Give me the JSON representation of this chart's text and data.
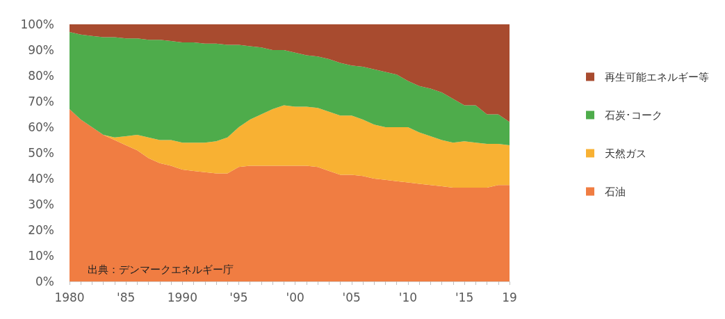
{
  "chart_data": {
    "type": "area",
    "stacked": true,
    "x": [
      1980,
      1981,
      1982,
      1983,
      1984,
      1985,
      1986,
      1987,
      1988,
      1989,
      1990,
      1991,
      1992,
      1993,
      1994,
      1995,
      1996,
      1997,
      1998,
      1999,
      2000,
      2001,
      2002,
      2003,
      2004,
      2005,
      2006,
      2007,
      2008,
      2009,
      2010,
      2011,
      2012,
      2013,
      2014,
      2015,
      2016,
      2017,
      2018,
      2019
    ],
    "series": [
      {
        "name": "石油",
        "color": "#f07d42",
        "values": [
          67,
          63,
          60,
          57,
          55,
          53,
          51,
          48,
          46,
          45,
          43.5,
          43,
          42.5,
          42,
          42,
          44.5,
          45,
          45,
          45,
          45,
          45,
          45,
          44.5,
          43,
          41.5,
          41.5,
          41,
          40,
          39.5,
          39,
          38.5,
          38,
          37.5,
          37,
          36.5,
          36.5,
          36.5,
          36.5,
          37.5,
          37.5
        ]
      },
      {
        "name": "天然ガス",
        "color": "#f8b133",
        "values": [
          0,
          0,
          0,
          0,
          1,
          3.5,
          6,
          8,
          9,
          10,
          10.5,
          11,
          11.5,
          12.5,
          14,
          15.5,
          18,
          20,
          22,
          23.5,
          23,
          23,
          23,
          23,
          23,
          23,
          22,
          21,
          20.5,
          21,
          21.5,
          20,
          19,
          18,
          17.5,
          18,
          17.5,
          17,
          16,
          15.5
        ]
      },
      {
        "name": "石炭･コーク",
        "color": "#4eac4b",
        "values": [
          30,
          33,
          35.5,
          38,
          39,
          38,
          37.5,
          38,
          39,
          38.5,
          39,
          39,
          38.5,
          38,
          36,
          32,
          28.5,
          26,
          23,
          21.5,
          21,
          20,
          20,
          20.5,
          20.5,
          19.5,
          20.5,
          21.5,
          21.5,
          20.5,
          18,
          18,
          18.5,
          18.5,
          17,
          14,
          14.5,
          11.5,
          11.5,
          9
        ]
      },
      {
        "name": "再生可能エネルギー等",
        "color": "#a84b2f",
        "values": [
          3,
          4,
          4.5,
          5,
          5,
          5.5,
          5.5,
          6,
          6,
          6.5,
          7,
          7,
          7.5,
          7.5,
          8,
          8,
          8.5,
          9,
          10,
          10,
          11,
          12,
          12.5,
          13.5,
          15,
          16,
          16.5,
          17.5,
          18.5,
          19.5,
          22,
          24,
          25,
          26.5,
          29,
          31.5,
          31.5,
          35,
          35,
          38
        ]
      }
    ],
    "xlim": [
      1980,
      2019
    ],
    "xticks": [
      1980,
      {
        "value": 1985,
        "label": "'85"
      },
      1990,
      {
        "value": 1995,
        "label": "'95"
      },
      {
        "value": 2000,
        "label": "'00"
      },
      {
        "value": 2005,
        "label": "'05"
      },
      {
        "value": 2010,
        "label": "'10"
      },
      {
        "value": 2015,
        "label": "'15"
      },
      {
        "value": 2019,
        "label": "19"
      }
    ],
    "ylim": [
      0,
      100
    ],
    "yticks": [
      {
        "value": 0,
        "label": "0%"
      },
      {
        "value": 10,
        "label": "10%"
      },
      {
        "value": 20,
        "label": "20%"
      },
      {
        "value": 30,
        "label": "30%"
      },
      {
        "value": 40,
        "label": "40%"
      },
      {
        "value": 50,
        "label": "50%"
      },
      {
        "value": 60,
        "label": "60%"
      },
      {
        "value": 70,
        "label": "70%"
      },
      {
        "value": 80,
        "label": "80%"
      },
      {
        "value": 90,
        "label": "90%"
      },
      {
        "value": 100,
        "label": "100%"
      }
    ],
    "grid": false,
    "legend": "right",
    "annotations": [
      "出典：デンマークエネルギー庁"
    ]
  }
}
